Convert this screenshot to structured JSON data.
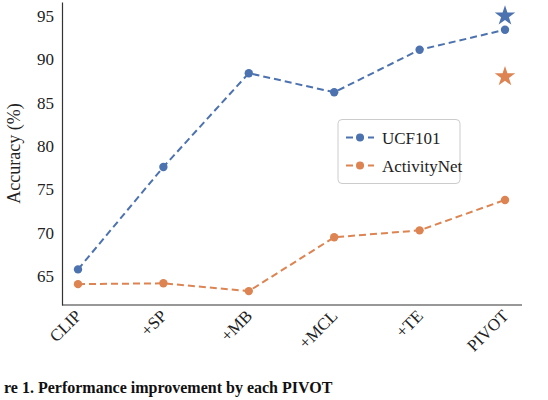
{
  "chart_data": {
    "type": "line",
    "y_label": "Accuracy (%)",
    "caption": "re 1. Performance improvement by each PIVOT",
    "categories": [
      "CLIP",
      "+SP",
      "+MB",
      "+MCL",
      "+TE",
      "PIVOT"
    ],
    "ylim": [
      61.7,
      96.6
    ],
    "yticks": [
      65,
      70,
      75,
      80,
      85,
      90,
      95
    ],
    "legend": "center right",
    "series": [
      {
        "name": "UCF101",
        "color": "#4c72b0",
        "marker": "circle",
        "line_style": "dashed",
        "values": [
          65.8,
          77.6,
          88.4,
          86.2,
          91.1,
          93.4
        ]
      },
      {
        "name": "ActivityNet",
        "color": "#dd8452",
        "marker": "circle",
        "line_style": "dashed",
        "values": [
          64.1,
          64.2,
          63.3,
          69.5,
          70.3,
          73.8
        ]
      },
      {
        "type": "scatter",
        "color": "#4c72b0",
        "marker": "star",
        "values": [
          null,
          null,
          null,
          null,
          null,
          95.0
        ]
      },
      {
        "type": "scatter",
        "color": "#dd8452",
        "marker": "star",
        "values": [
          null,
          null,
          null,
          null,
          null,
          88.0
        ]
      }
    ]
  }
}
